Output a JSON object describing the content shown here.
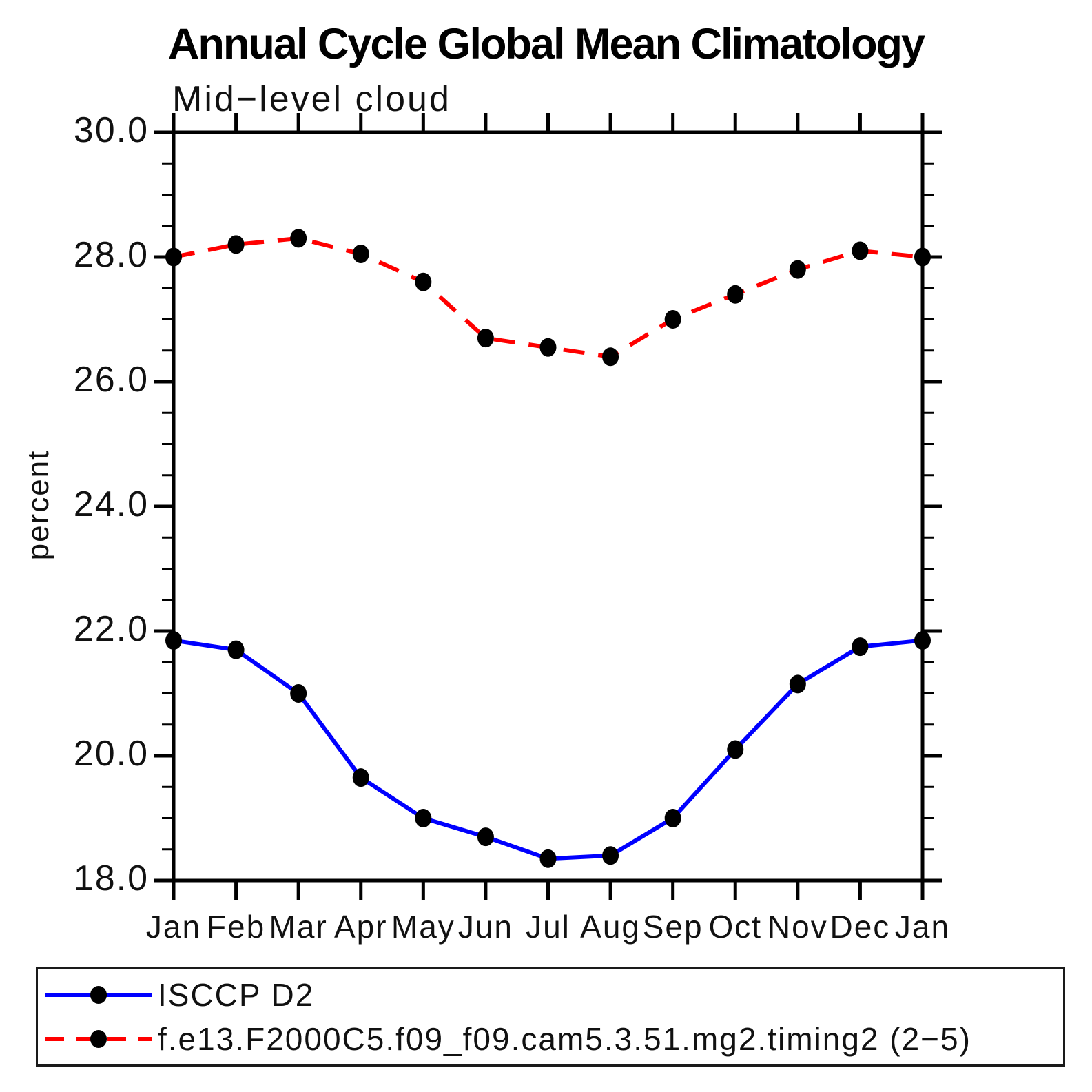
{
  "title": "Annual Cycle Global Mean Climatology",
  "chart_data": {
    "type": "line",
    "title": "Annual Cycle Global Mean Climatology",
    "subtitle": "Mid−level cloud",
    "ylabel": "percent",
    "xlabel": "",
    "ylim": [
      18.0,
      30.0
    ],
    "ytick_major_step": 2.0,
    "ytick_minor_step": 0.5,
    "ytick_labels": [
      "30.0",
      "28.0",
      "26.0",
      "24.0",
      "22.0",
      "20.0",
      "18.0"
    ],
    "categories": [
      "Jan",
      "Feb",
      "Mar",
      "Apr",
      "May",
      "Jun",
      "Jul",
      "Aug",
      "Sep",
      "Oct",
      "Nov",
      "Dec",
      "Jan"
    ],
    "grid": false,
    "legend_position": "bottom",
    "marker": {
      "shape": "filled-circle",
      "color": "#000000"
    },
    "axis_color": "#000000",
    "series": [
      {
        "name": "ISCCP D2",
        "color": "#0000ff",
        "line_style": "solid",
        "values": [
          21.85,
          21.7,
          21.0,
          19.65,
          19.0,
          18.7,
          18.35,
          18.4,
          19.0,
          20.1,
          21.15,
          21.75,
          21.85
        ]
      },
      {
        "name": "f.e13.F2000C5.f09_f09.cam5.3.51.mg2.timing2 (2−5)",
        "color": "#ff0000",
        "line_style": "dashed",
        "values": [
          28.0,
          28.2,
          28.3,
          28.05,
          27.6,
          26.7,
          26.55,
          26.4,
          27.0,
          27.4,
          27.8,
          28.1,
          28.0
        ]
      }
    ]
  }
}
